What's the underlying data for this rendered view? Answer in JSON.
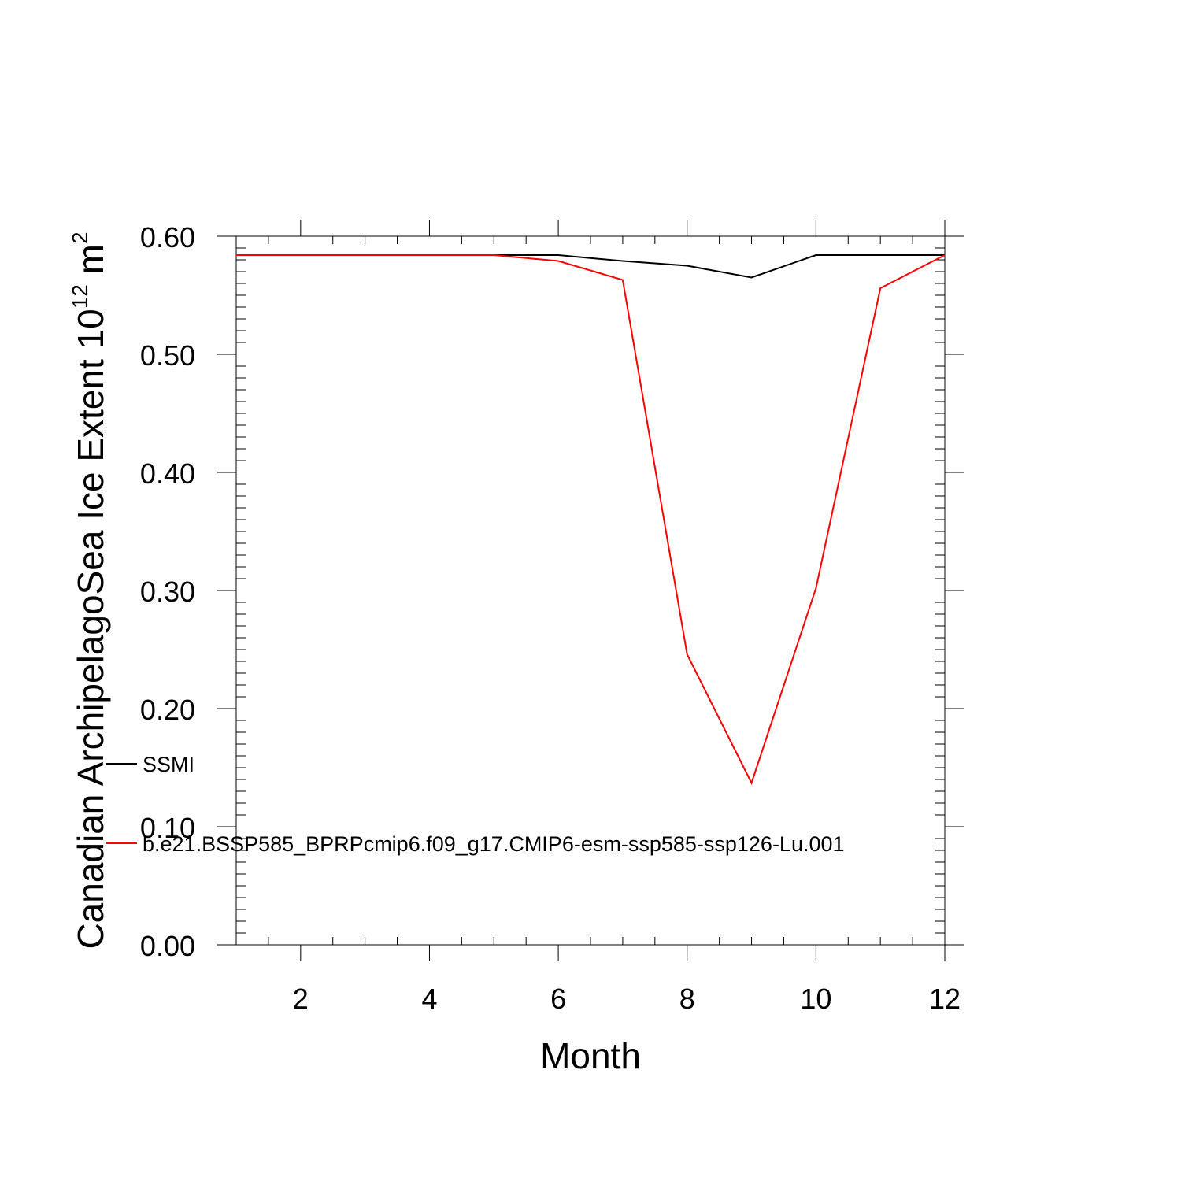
{
  "chart_data": {
    "type": "line",
    "title": "",
    "xlabel": "Month",
    "ylabel": {
      "prefix": "Canadian ArchipelagoSea Ice Extent 10",
      "exp1": "12",
      "mid": " m",
      "exp2": "2"
    },
    "xlim": [
      1,
      12
    ],
    "ylim": [
      0,
      0.6
    ],
    "x_ticks": [
      2,
      4,
      6,
      8,
      10,
      12
    ],
    "x_tick_labels": [
      "2",
      "4",
      "6",
      "8",
      "10",
      "12"
    ],
    "y_ticks": [
      0,
      0.1,
      0.2,
      0.3,
      0.4,
      0.5,
      0.6
    ],
    "y_tick_labels": [
      "0.00",
      "0.10",
      "0.20",
      "0.30",
      "0.40",
      "0.50",
      "0.60"
    ],
    "grid": false,
    "legend_position": "left, inside plot near bottom",
    "x": [
      1,
      2,
      3,
      4,
      5,
      6,
      7,
      8,
      9,
      10,
      11,
      12
    ],
    "series": [
      {
        "name": "SSMI",
        "color": "#000000",
        "values": [
          0.584,
          0.584,
          0.584,
          0.584,
          0.584,
          0.584,
          0.579,
          0.575,
          0.565,
          0.584,
          0.584,
          0.584
        ]
      },
      {
        "name": "b.e21.BSSP585_BPRPcmip6.f09_g17.CMIP6-esm-ssp585-ssp126-Lu.001",
        "color": "#ff0000",
        "values": [
          0.584,
          0.584,
          0.584,
          0.584,
          0.584,
          0.579,
          0.563,
          0.246,
          0.137,
          0.302,
          0.556,
          0.584
        ]
      }
    ]
  }
}
